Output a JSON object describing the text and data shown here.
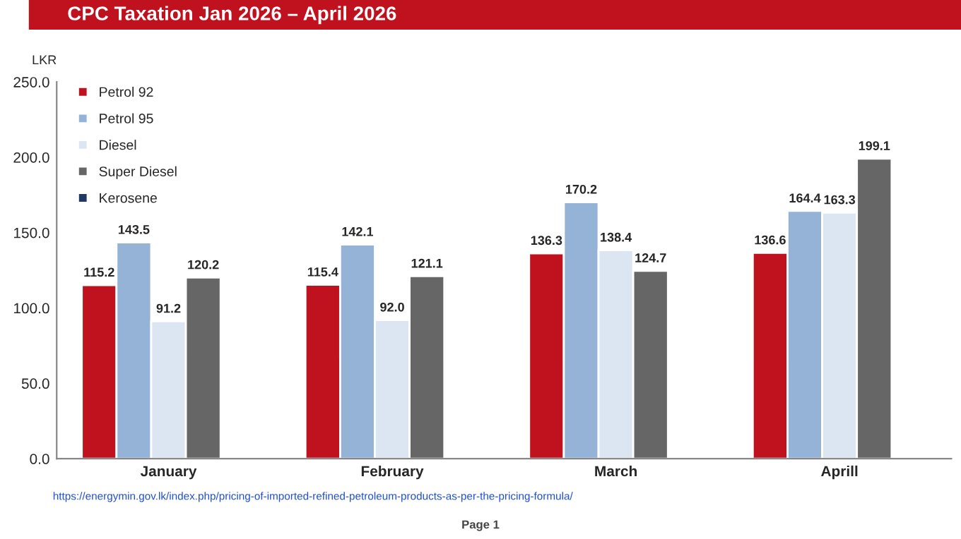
{
  "chart_data": {
    "type": "bar",
    "title": "CPC Taxation Jan 2026 – April 2026",
    "ylabel": "LKR",
    "categories": [
      "January",
      "February",
      "March",
      "Aprill"
    ],
    "series": [
      {
        "name": "Petrol 92",
        "color": "#c0111f",
        "values": [
          115.2,
          115.4,
          136.3,
          136.6
        ],
        "value_labels": [
          "115.2",
          "115.4",
          "136.3",
          "136.6"
        ]
      },
      {
        "name": "Petrol 95",
        "color": "#95b3d7",
        "values": [
          143.5,
          142.1,
          170.2,
          164.4
        ],
        "value_labels": [
          "143.5",
          "142.1",
          "170.2",
          "164.4"
        ]
      },
      {
        "name": "Diesel",
        "color": "#dce6f2",
        "values": [
          91.2,
          92.0,
          138.4,
          163.3
        ],
        "value_labels": [
          "91.2",
          "92.0",
          "138.4",
          "163.3"
        ]
      },
      {
        "name": "Super Diesel",
        "color": "#666666",
        "values": [
          120.2,
          121.1,
          124.7,
          199.1
        ],
        "value_labels": [
          "120.2",
          "121.1",
          "124.7",
          "199.1"
        ]
      },
      {
        "name": "Kerosene",
        "color": "#1f3864",
        "values": [
          null,
          null,
          null,
          null
        ]
      }
    ],
    "ylim": [
      0,
      250
    ],
    "yticks": [
      {
        "value": 0,
        "label": "0.0"
      },
      {
        "value": 50,
        "label": "50.0"
      },
      {
        "value": 100,
        "label": "100.0"
      },
      {
        "value": 150,
        "label": "150.0"
      },
      {
        "value": 200,
        "label": "200.0"
      },
      {
        "value": 250,
        "label": "250.0"
      }
    ],
    "grid": false,
    "legend": "top left",
    "annotations": [
      "https://energymin.gov.lk/index.php/pricing-of-imported-refined-petroleum-products-as-per-the-pricing-formula/",
      "Page 1"
    ]
  }
}
